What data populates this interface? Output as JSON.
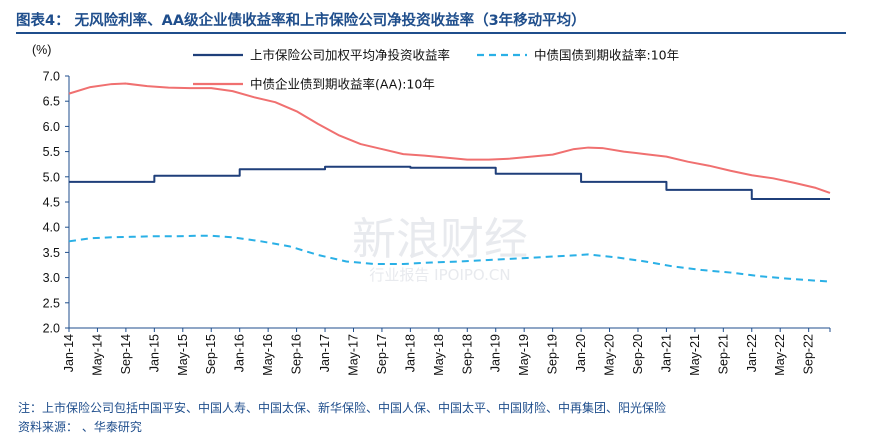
{
  "figure": {
    "title": "图表4：  无风险利率、AA级企业债收益率和上市保险公司净投资收益率（3年移动平均）"
  },
  "notes": {
    "note": "注：上市保险公司包括中国平安、中国人寿、中国太保、新华保险、中国人保、中国太平、中国财险、中再集团、阳光保险",
    "source": "资料来源：        、华泰研究"
  },
  "watermark": {
    "main": "新浪财经",
    "sub": "行业报告 IPOIPO.CN"
  },
  "colors": {
    "insurer": "#1f3f7a",
    "govbond": "#2ab0e6",
    "aa": "#f07070",
    "axis": "#1f4e8c"
  },
  "chart_data": {
    "type": "line",
    "title": "",
    "ylabel": "(%)",
    "ylim": [
      2.0,
      7.0
    ],
    "yticks": [
      "7.0",
      "6.5",
      "6.0",
      "5.5",
      "5.0",
      "4.5",
      "4.0",
      "3.5",
      "3.0",
      "2.5",
      "2.0"
    ],
    "x_tick_labels": [
      "Jan-14",
      "May-14",
      "Sep-14",
      "Jan-15",
      "May-15",
      "Sep-15",
      "Jan-16",
      "May-16",
      "Sep-16",
      "Jan-17",
      "May-17",
      "Sep-17",
      "Jan-18",
      "May-18",
      "Sep-18",
      "Jan-19",
      "May-19",
      "Sep-19",
      "Jan-20",
      "May-20",
      "Sep-20",
      "Jan-21",
      "May-21",
      "Sep-21",
      "Jan-22",
      "May-22",
      "Sep-22"
    ],
    "x_start": "2014-01",
    "x_end": "2022-12",
    "grid": false,
    "legend_position": "top",
    "series": [
      {
        "name": "上市保险公司加权平均净投资收益率",
        "style": "step",
        "points": [
          [
            "2014-01",
            4.9
          ],
          [
            "2014-12",
            4.9
          ],
          [
            "2015-01",
            5.02
          ],
          [
            "2015-12",
            5.02
          ],
          [
            "2016-01",
            5.15
          ],
          [
            "2016-12",
            5.15
          ],
          [
            "2017-01",
            5.2
          ],
          [
            "2017-12",
            5.2
          ],
          [
            "2018-01",
            5.18
          ],
          [
            "2018-12",
            5.18
          ],
          [
            "2019-01",
            5.06
          ],
          [
            "2019-12",
            5.06
          ],
          [
            "2020-01",
            4.9
          ],
          [
            "2020-12",
            4.9
          ],
          [
            "2021-01",
            4.74
          ],
          [
            "2021-12",
            4.74
          ],
          [
            "2022-01",
            4.56
          ],
          [
            "2022-12",
            4.56
          ]
        ]
      },
      {
        "name": "中债国债到期收益率:10年",
        "style": "dashed",
        "points": [
          [
            "2014-01",
            3.72
          ],
          [
            "2014-04",
            3.78
          ],
          [
            "2014-07",
            3.8
          ],
          [
            "2014-10",
            3.81
          ],
          [
            "2015-01",
            3.82
          ],
          [
            "2015-04",
            3.82
          ],
          [
            "2015-07",
            3.83
          ],
          [
            "2015-09",
            3.83
          ],
          [
            "2015-12",
            3.8
          ],
          [
            "2016-04",
            3.72
          ],
          [
            "2016-08",
            3.62
          ],
          [
            "2016-12",
            3.45
          ],
          [
            "2017-04",
            3.32
          ],
          [
            "2017-08",
            3.27
          ],
          [
            "2017-12",
            3.27
          ],
          [
            "2018-04",
            3.3
          ],
          [
            "2018-08",
            3.32
          ],
          [
            "2018-12",
            3.35
          ],
          [
            "2019-04",
            3.38
          ],
          [
            "2019-08",
            3.41
          ],
          [
            "2019-12",
            3.44
          ],
          [
            "2020-02",
            3.46
          ],
          [
            "2020-06",
            3.4
          ],
          [
            "2020-10",
            3.32
          ],
          [
            "2021-02",
            3.22
          ],
          [
            "2021-06",
            3.15
          ],
          [
            "2021-10",
            3.1
          ],
          [
            "2022-02",
            3.03
          ],
          [
            "2022-06",
            2.98
          ],
          [
            "2022-09",
            2.95
          ],
          [
            "2022-12",
            2.92
          ]
        ]
      },
      {
        "name": "中债企业债到期收益率(AA):10年",
        "style": "solid",
        "points": [
          [
            "2014-01",
            6.65
          ],
          [
            "2014-04",
            6.78
          ],
          [
            "2014-07",
            6.84
          ],
          [
            "2014-09",
            6.85
          ],
          [
            "2014-12",
            6.8
          ],
          [
            "2015-03",
            6.77
          ],
          [
            "2015-06",
            6.76
          ],
          [
            "2015-09",
            6.76
          ],
          [
            "2015-12",
            6.7
          ],
          [
            "2016-03",
            6.58
          ],
          [
            "2016-06",
            6.48
          ],
          [
            "2016-09",
            6.3
          ],
          [
            "2016-12",
            6.05
          ],
          [
            "2017-03",
            5.82
          ],
          [
            "2017-06",
            5.65
          ],
          [
            "2017-09",
            5.55
          ],
          [
            "2017-12",
            5.45
          ],
          [
            "2018-03",
            5.42
          ],
          [
            "2018-06",
            5.38
          ],
          [
            "2018-09",
            5.34
          ],
          [
            "2018-12",
            5.34
          ],
          [
            "2019-03",
            5.36
          ],
          [
            "2019-06",
            5.4
          ],
          [
            "2019-09",
            5.44
          ],
          [
            "2019-12",
            5.55
          ],
          [
            "2020-02",
            5.58
          ],
          [
            "2020-04",
            5.57
          ],
          [
            "2020-07",
            5.5
          ],
          [
            "2020-10",
            5.45
          ],
          [
            "2021-01",
            5.4
          ],
          [
            "2021-04",
            5.3
          ],
          [
            "2021-07",
            5.22
          ],
          [
            "2021-10",
            5.12
          ],
          [
            "2022-01",
            5.03
          ],
          [
            "2022-04",
            4.97
          ],
          [
            "2022-07",
            4.88
          ],
          [
            "2022-10",
            4.78
          ],
          [
            "2022-12",
            4.68
          ]
        ]
      }
    ]
  }
}
